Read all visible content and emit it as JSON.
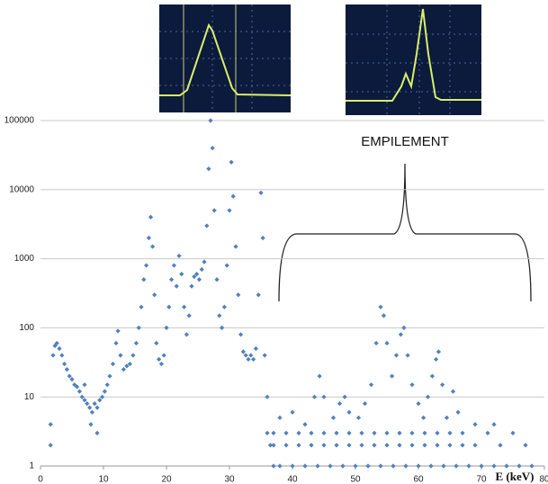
{
  "chart_data": {
    "type": "scatter",
    "annotation": "EMPILEMENT",
    "xlabel": "E (keV)",
    "xlim": [
      0,
      80
    ],
    "xticks": [
      0,
      10,
      20,
      30,
      40,
      50,
      60,
      70,
      80
    ],
    "ylim": [
      1,
      100000
    ],
    "yticks": [
      1,
      10,
      100,
      1000,
      10000,
      100000
    ],
    "log_y": true,
    "grid": true,
    "series": [
      {
        "color": "#4f81bd",
        "x": [
          1.6,
          1.6,
          2,
          2.3,
          2.6,
          3,
          3.4,
          3.8,
          4.2,
          4.6,
          5,
          5.4,
          5.8,
          6.2,
          6.6,
          7,
          7.4,
          7.8,
          8.2,
          8.6,
          9,
          9.4,
          9.8,
          7,
          8,
          9,
          10.2,
          10.6,
          11,
          11.5,
          12,
          12.3,
          12.7,
          13.2,
          13.7,
          14.2,
          14.7,
          15.2,
          15.6,
          16,
          16.4,
          16.8,
          17.2,
          17.5,
          17.8,
          18.1,
          18.4,
          18.8,
          19.2,
          19.6,
          20,
          20.4,
          20.8,
          21.2,
          21.6,
          22,
          22.4,
          22.8,
          23.2,
          23.6,
          24,
          24.4,
          24.8,
          25.2,
          25.6,
          26,
          26.4,
          26.7,
          27,
          27.3,
          27.6,
          28,
          28.4,
          28.8,
          29.2,
          29.6,
          30,
          30.3,
          30.6,
          31,
          31.4,
          31.8,
          32.2,
          32.6,
          33,
          33.4,
          33.8,
          34.2,
          34.6,
          35,
          35.3,
          35.6,
          36,
          36,
          36.5,
          37,
          38,
          40,
          42,
          44,
          46,
          48,
          50,
          52,
          54,
          56,
          58,
          60,
          62,
          64,
          66,
          68,
          70,
          72,
          74,
          76,
          78,
          37,
          39,
          41,
          43,
          45,
          47,
          49,
          51,
          53,
          55,
          57,
          59,
          61,
          63,
          65,
          67,
          69,
          73,
          77,
          37,
          39,
          41,
          43,
          45,
          47,
          49,
          51,
          53,
          55,
          57,
          59,
          61,
          63,
          65,
          67,
          71,
          75,
          38,
          40,
          42,
          43.5,
          44.3,
          45,
          46.5,
          47.5,
          48.3,
          49,
          50.5,
          51.5,
          52.5,
          53.3,
          54,
          54.5,
          55,
          55.8,
          56.5,
          57.2,
          57.7,
          58.3,
          59,
          60,
          60.8,
          61.5,
          62.2,
          62.8,
          63.2,
          63.8,
          64.5,
          65.5,
          66.3,
          69,
          72
        ],
        "values": [
          2,
          4,
          40,
          55,
          60,
          50,
          40,
          30,
          25,
          20,
          18,
          15,
          14,
          12,
          10,
          9,
          8,
          7,
          6,
          8,
          7,
          9,
          10,
          15,
          4,
          3,
          12,
          15,
          20,
          30,
          60,
          90,
          40,
          25,
          28,
          30,
          40,
          60,
          100,
          200,
          500,
          800,
          2000,
          4000,
          1500,
          300,
          60,
          35,
          30,
          40,
          100,
          200,
          500,
          800,
          400,
          1100,
          600,
          200,
          80,
          150,
          400,
          550,
          600,
          500,
          700,
          900,
          3000,
          20000,
          100000,
          40000,
          5000,
          500,
          150,
          100,
          200,
          800,
          5000,
          25000,
          8000,
          1500,
          300,
          80,
          45,
          40,
          35,
          40,
          35,
          50,
          300,
          9000,
          2000,
          40,
          10,
          3,
          2,
          1,
          1,
          1,
          1,
          1,
          1,
          1,
          1,
          1,
          1,
          1,
          1,
          1,
          1,
          1,
          1,
          1,
          1,
          1,
          1,
          1,
          1,
          2,
          2,
          2,
          2,
          2,
          2,
          2,
          2,
          2,
          2,
          2,
          2,
          2,
          2,
          2,
          2,
          2,
          2,
          2,
          3,
          3,
          3,
          3,
          3,
          3,
          3,
          3,
          3,
          3,
          3,
          3,
          3,
          3,
          3,
          3,
          3,
          3,
          5,
          6,
          4,
          10,
          20,
          10,
          5,
          8,
          10,
          6,
          5,
          8,
          15,
          60,
          200,
          150,
          60,
          20,
          40,
          80,
          100,
          40,
          15,
          8,
          5,
          10,
          20,
          35,
          45,
          15,
          5,
          12,
          6,
          4,
          4
        ]
      }
    ]
  }
}
